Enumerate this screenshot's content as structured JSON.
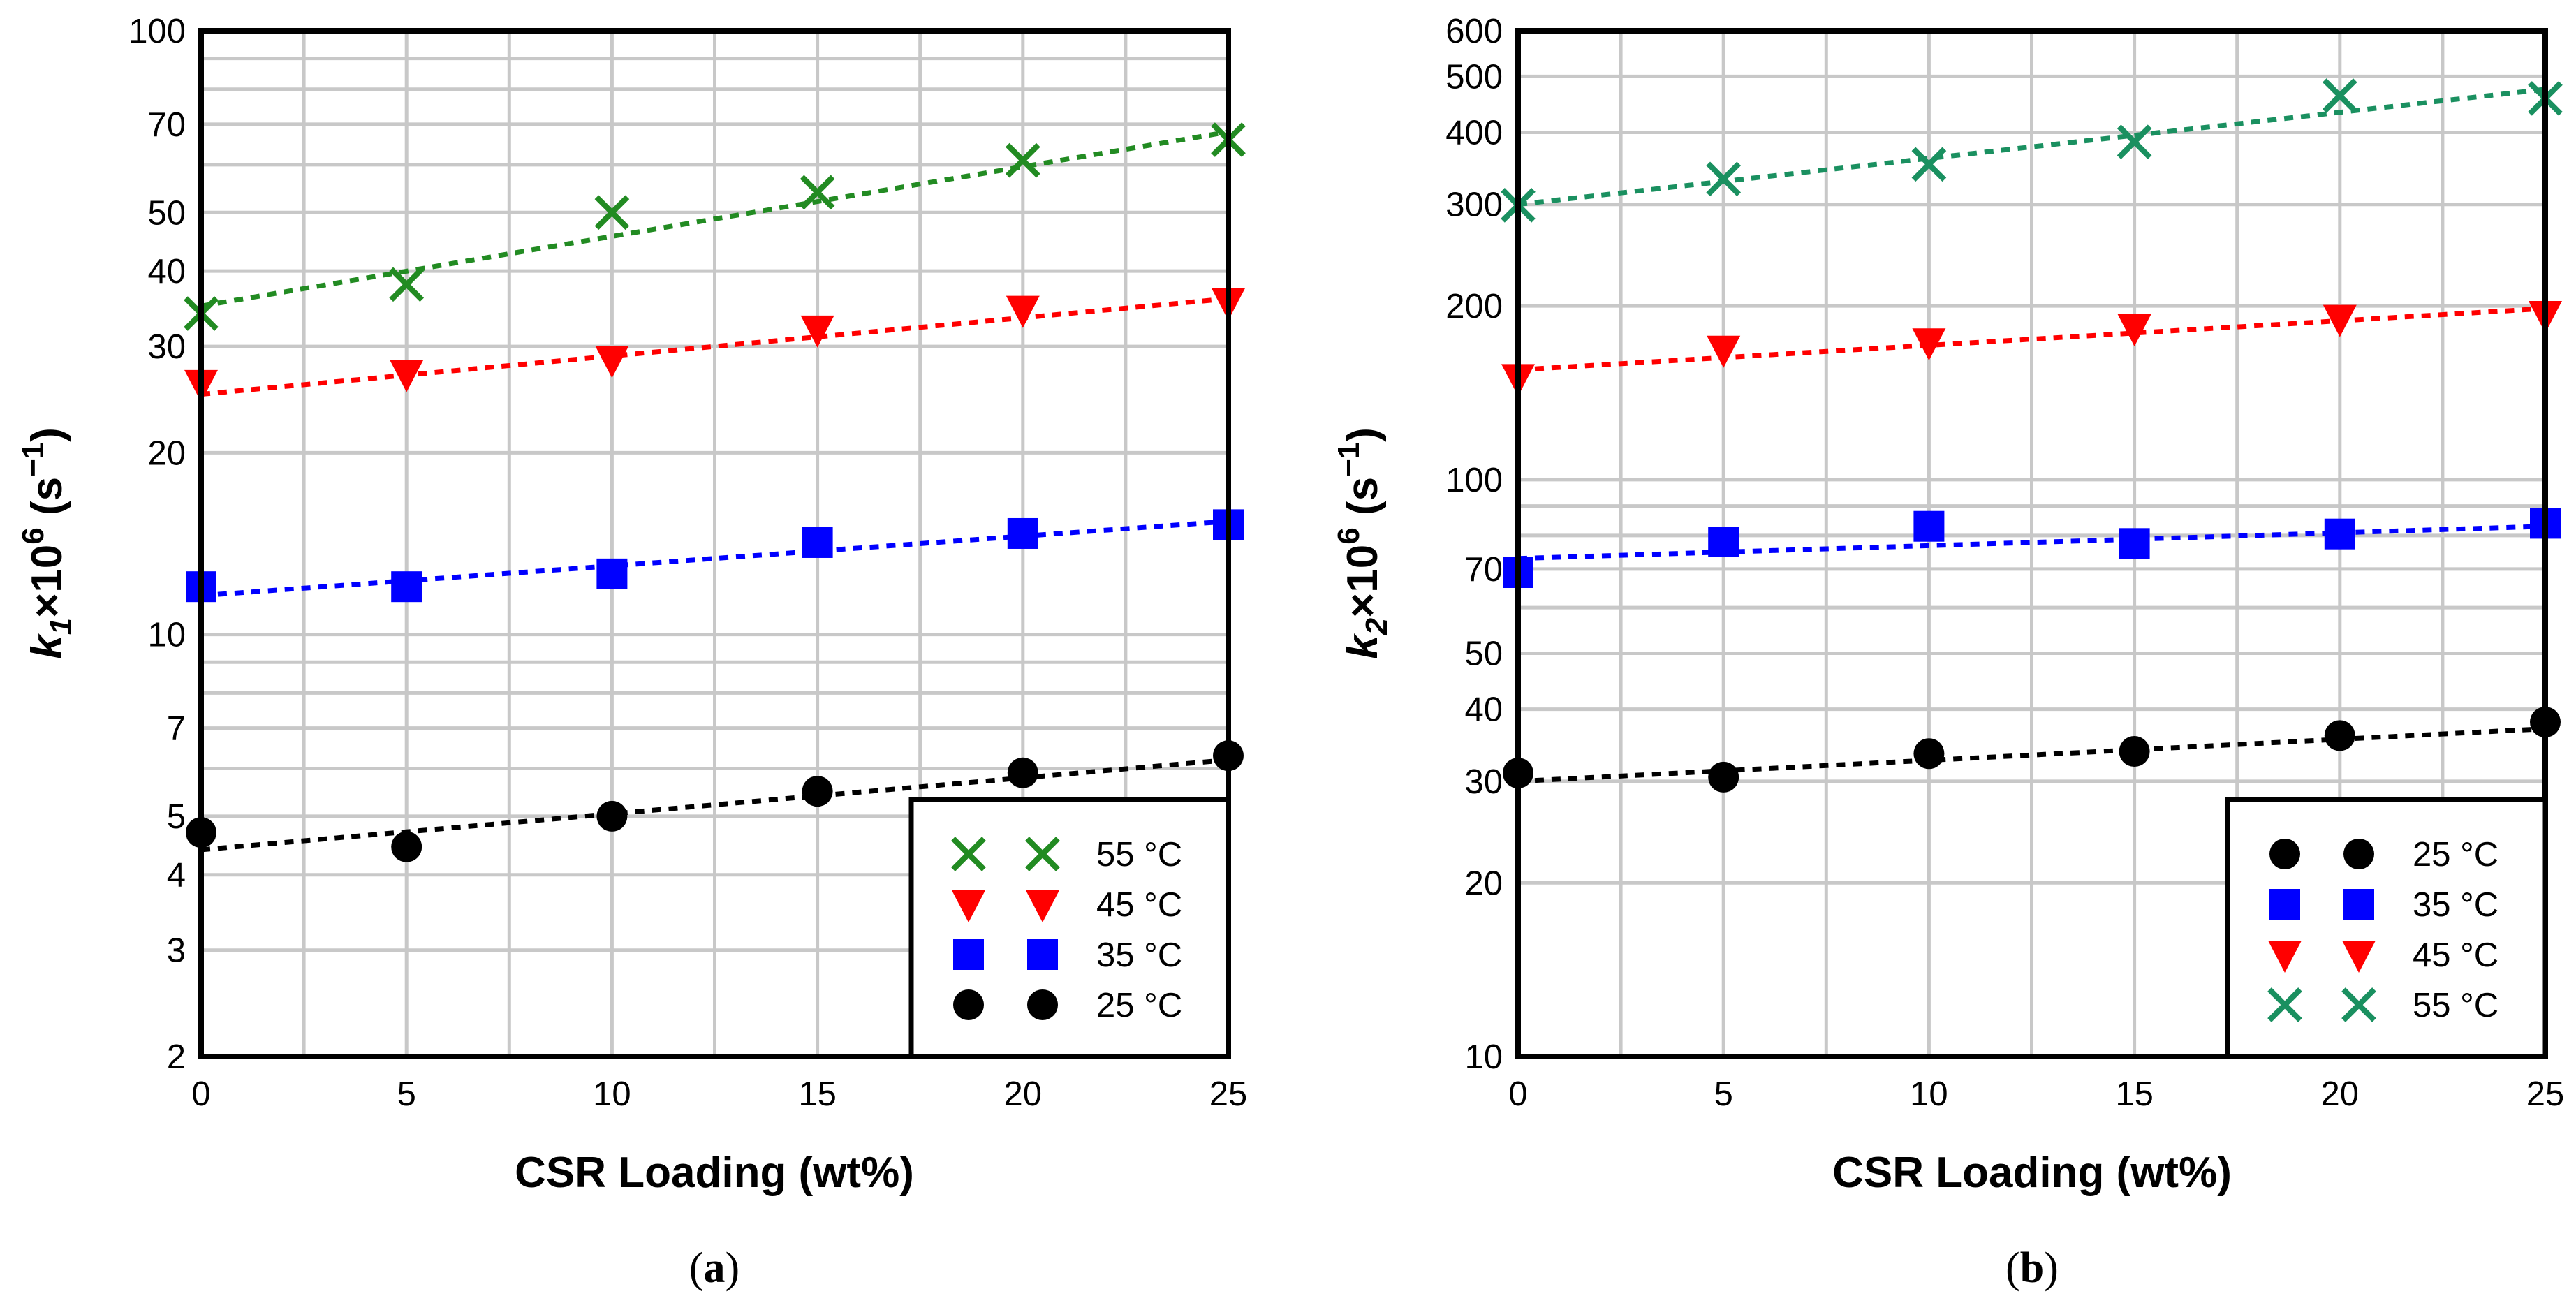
{
  "chart_data": [
    {
      "id": "a",
      "type": "scatter",
      "caption": "a",
      "xlabel": "CSR Loading (wt%)",
      "ylabel": "k1×10^6 (s^-1)",
      "ylabel_parts": {
        "var": "k",
        "sub": "1",
        "mid": "×10",
        "sup": "6",
        "unit_open": " (s",
        "unit_sup": "−1",
        "unit_close": ")"
      },
      "xlim": [
        0,
        25
      ],
      "ylim": [
        2,
        100
      ],
      "yscale": "log",
      "x_ticks": [
        0,
        5,
        10,
        15,
        20,
        25
      ],
      "x_tick_labels": [
        "0",
        "5",
        "10",
        "15",
        "20",
        "25"
      ],
      "x_minor_grid": [
        2.5,
        7.5,
        12.5,
        17.5,
        22.5
      ],
      "y_ticks": [
        2,
        3,
        4,
        5,
        7,
        10,
        20,
        30,
        40,
        50,
        70,
        100
      ],
      "y_tick_labels": [
        "2",
        "3",
        "4",
        "5",
        "7",
        "10",
        "20",
        "30",
        "40",
        "50",
        "70",
        "100"
      ],
      "y_grid": [
        2,
        3,
        4,
        5,
        6,
        7,
        8,
        9,
        10,
        20,
        30,
        40,
        50,
        60,
        70,
        80,
        90,
        100
      ],
      "grid": true,
      "legend_position": "bottom-right",
      "series": [
        {
          "name": "55 °C",
          "marker": "x",
          "color": "#228b22",
          "x": [
            0,
            5,
            10,
            15,
            20,
            25
          ],
          "y": [
            34,
            38,
            50,
            54,
            61,
            66
          ],
          "fit": [
            35,
            68
          ]
        },
        {
          "name": "45 °C",
          "marker": "triangle-down",
          "color": "#ff0000",
          "x": [
            0,
            5,
            10,
            15,
            20,
            25
          ],
          "y": [
            26,
            27,
            28.5,
            32,
            34.5,
            35.5
          ],
          "fit": [
            25,
            36
          ]
        },
        {
          "name": "35 °C",
          "marker": "square",
          "color": "#0000ff",
          "x": [
            0,
            5,
            10,
            15,
            20,
            25
          ],
          "y": [
            12,
            12,
            12.6,
            14.2,
            14.7,
            15.2
          ],
          "fit": [
            11.6,
            15.4
          ]
        },
        {
          "name": "25 °C",
          "marker": "circle",
          "color": "#000000",
          "x": [
            0,
            5,
            10,
            15,
            20,
            25
          ],
          "y": [
            4.7,
            4.45,
            5.0,
            5.5,
            5.9,
            6.3
          ],
          "fit": [
            4.4,
            6.2
          ]
        }
      ]
    },
    {
      "id": "b",
      "type": "scatter",
      "caption": "b",
      "xlabel": "CSR Loading (wt%)",
      "ylabel": "k2×10^6 (s^-1)",
      "ylabel_parts": {
        "var": "k",
        "sub": "2",
        "mid": "×10",
        "sup": "6",
        "unit_open": " (s",
        "unit_sup": "−1",
        "unit_close": ")"
      },
      "xlim": [
        0,
        25
      ],
      "ylim": [
        10,
        600
      ],
      "yscale": "log",
      "x_ticks": [
        0,
        5,
        10,
        15,
        20,
        25
      ],
      "x_tick_labels": [
        "0",
        "5",
        "10",
        "15",
        "20",
        "25"
      ],
      "x_minor_grid": [
        2.5,
        7.5,
        12.5,
        17.5,
        22.5
      ],
      "y_ticks": [
        10,
        20,
        30,
        40,
        50,
        70,
        100,
        200,
        300,
        400,
        500,
        600
      ],
      "y_tick_labels": [
        "10",
        "20",
        "30",
        "40",
        "50",
        "70",
        "100",
        "200",
        "300",
        "400",
        "500",
        "600"
      ],
      "y_grid": [
        10,
        20,
        30,
        40,
        50,
        60,
        70,
        80,
        90,
        100,
        200,
        300,
        400,
        500,
        600
      ],
      "grid": true,
      "legend_position": "bottom-right",
      "series": [
        {
          "name": "25 °C",
          "marker": "circle",
          "color": "#000000",
          "x": [
            0,
            5,
            10,
            15,
            20,
            25
          ],
          "y": [
            31,
            30.5,
            33.5,
            33.8,
            36,
            38
          ],
          "fit": [
            30,
            37
          ]
        },
        {
          "name": "35 °C",
          "marker": "square",
          "color": "#0000ff",
          "x": [
            0,
            5,
            10,
            15,
            20,
            25
          ],
          "y": [
            69,
            78,
            83,
            77.5,
            80.5,
            84
          ],
          "fit": [
            73,
            83
          ]
        },
        {
          "name": "45 °C",
          "marker": "triangle-down",
          "color": "#ff0000",
          "x": [
            0,
            5,
            10,
            15,
            20,
            25
          ],
          "y": [
            150,
            168,
            173,
            183,
            190,
            193
          ],
          "fit": [
            155,
            198
          ]
        },
        {
          "name": "55 °C",
          "marker": "x",
          "color": "#1a9060",
          "x": [
            0,
            5,
            10,
            15,
            20,
            25
          ],
          "y": [
            299,
            332,
            352,
            385,
            463,
            458
          ],
          "fit": [
            300,
            475
          ]
        }
      ]
    }
  ]
}
